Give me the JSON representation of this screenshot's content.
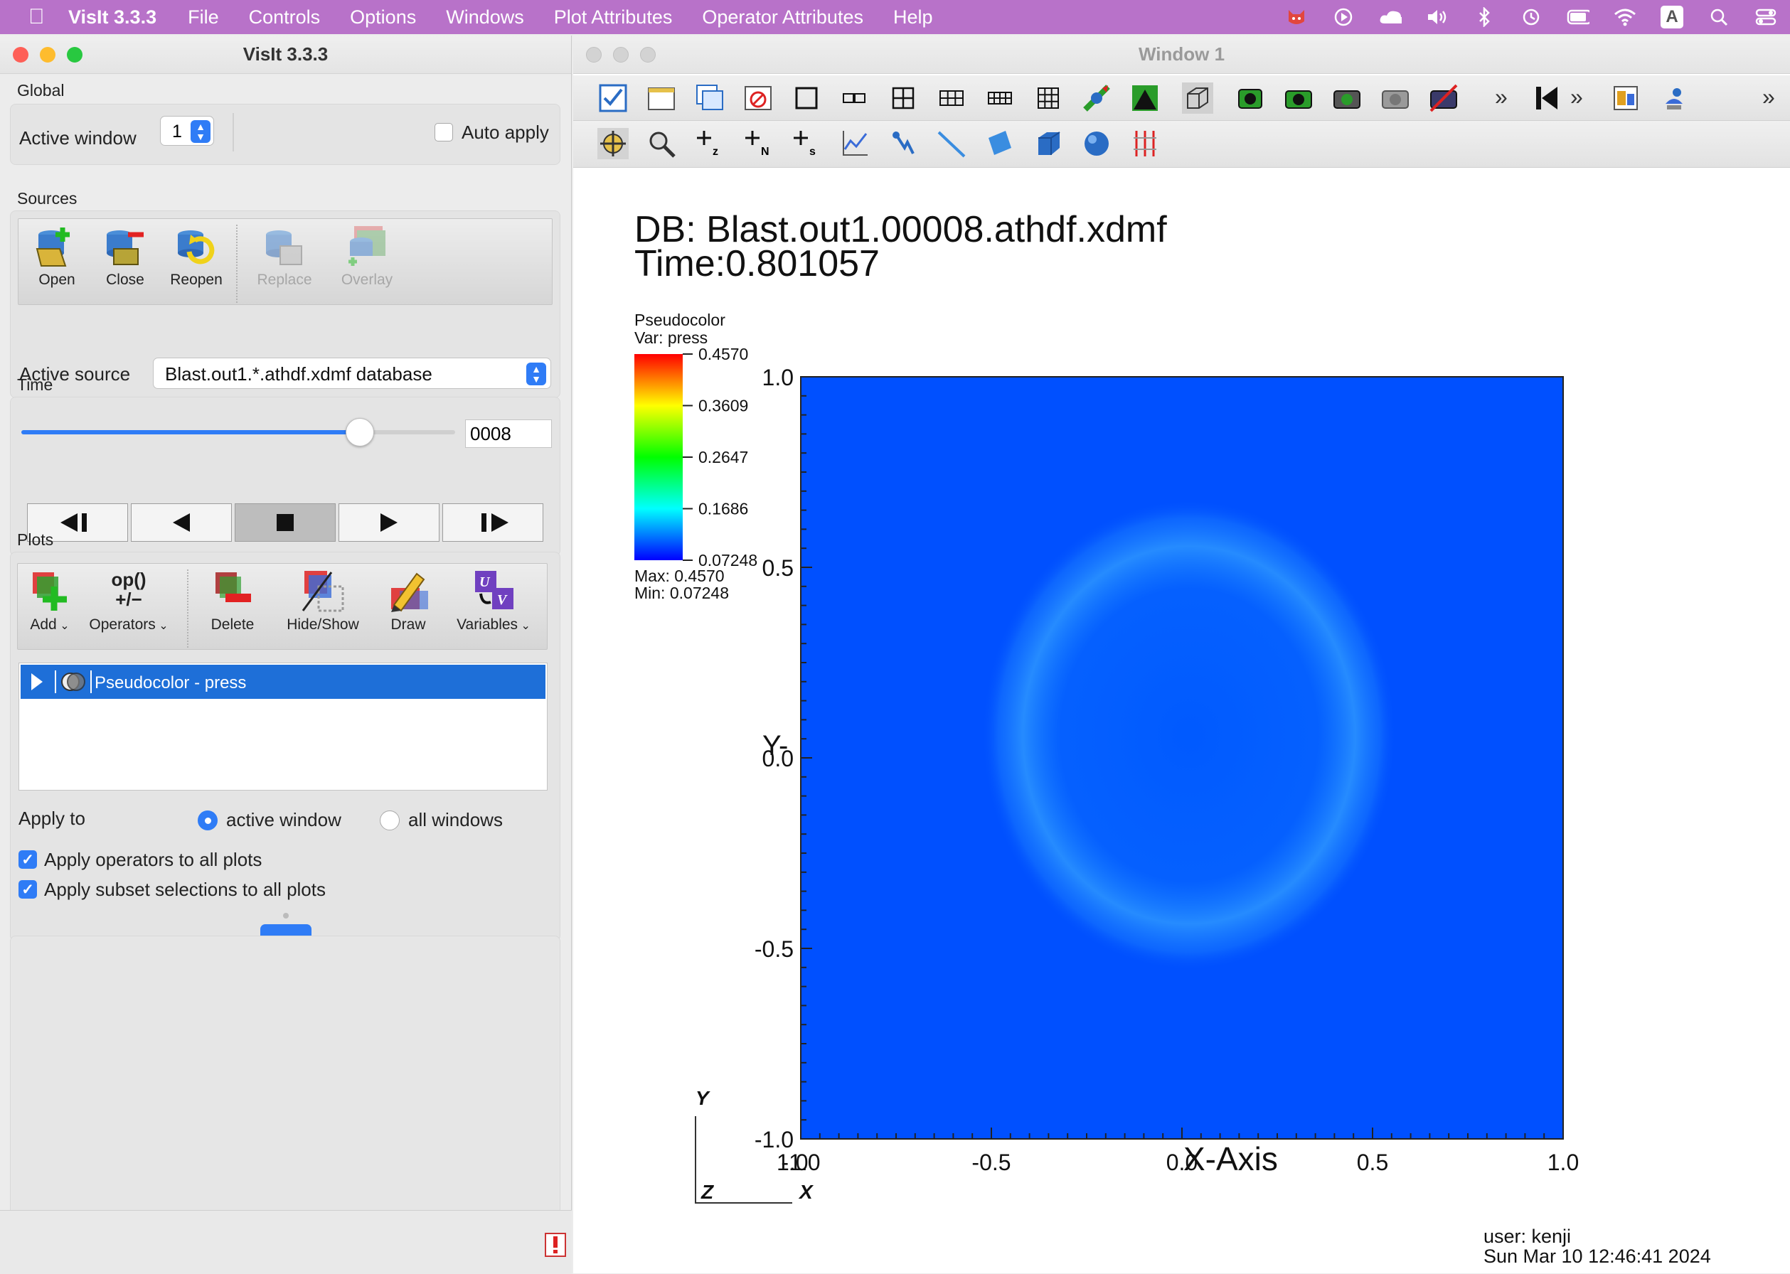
{
  "menubar": {
    "app_name": "VisIt 3.3.3",
    "items": [
      "File",
      "Controls",
      "Options",
      "Windows",
      "Plot Attributes",
      "Operator Attributes",
      "Help"
    ],
    "status_icons": [
      "creature-icon",
      "play-circle-icon",
      "cloud-icon",
      "volume-icon",
      "bluetooth-icon",
      "time-machine-icon",
      "battery-icon",
      "wifi-icon",
      "input-source-icon",
      "search-icon",
      "control-center-icon"
    ],
    "input_source_letter": "A"
  },
  "panel": {
    "title": "VisIt 3.3.3",
    "global": {
      "section": "Global",
      "active_window_label": "Active window",
      "active_window_value": "1",
      "auto_apply_label": "Auto apply",
      "auto_apply_checked": false
    },
    "sources": {
      "section": "Sources",
      "buttons": [
        {
          "label": "Open",
          "enabled": true
        },
        {
          "label": "Close",
          "enabled": true
        },
        {
          "label": "Reopen",
          "enabled": true
        },
        {
          "label": "Replace",
          "enabled": false
        },
        {
          "label": "Overlay",
          "enabled": false
        }
      ],
      "active_source_label": "Active source",
      "active_source_value": "Blast.out1.*.athdf.xdmf database"
    },
    "time": {
      "section": "Time",
      "slider_fraction": 0.78,
      "state_value": "0008",
      "vcr": [
        "step-back",
        "reverse-play",
        "stop",
        "play",
        "step-forward"
      ]
    },
    "plots": {
      "section": "Plots",
      "buttons": [
        {
          "label": "Add",
          "has_menu": true
        },
        {
          "label": "Operators",
          "has_menu": true,
          "icon_text": "op()\n+/−"
        },
        {
          "label": "Delete",
          "has_menu": false
        },
        {
          "label": "Hide/Show",
          "has_menu": false
        },
        {
          "label": "Draw",
          "has_menu": false
        },
        {
          "label": "Variables",
          "has_menu": true
        }
      ],
      "list": [
        {
          "label": "Pseudocolor - press",
          "selected": true
        }
      ],
      "apply_to_label": "Apply to",
      "apply_options": [
        {
          "label": "active window",
          "selected": true
        },
        {
          "label": "all windows",
          "selected": false
        }
      ],
      "apply_operators_label": "Apply operators to all plots",
      "apply_operators_checked": true,
      "apply_subsets_label": "Apply subset selections to all plots",
      "apply_subsets_checked": true
    }
  },
  "viz": {
    "title": "Window 1",
    "db_line": "DB: Blast.out1.00008.athdf.xdmf",
    "time_line": "Time:0.801057",
    "legend": {
      "plot_name": "Pseudocolor",
      "var_line": "Var: press",
      "ticks": [
        "0.4570",
        "0.3609",
        "0.2647",
        "0.1686",
        "0.07248"
      ],
      "max_line": "Max:  0.4570",
      "min_line": "Min:  0.07248"
    },
    "axes": {
      "y_ticks": [
        "1.0",
        "0.5",
        "0.0",
        "-0.5",
        "-1.0"
      ],
      "x_ticks": [
        "1.0",
        "-1.0",
        "-0.5",
        "0.0",
        "0.5",
        "1.0"
      ],
      "x_title": "X-Axis",
      "y_title": "Y-",
      "triad": {
        "y": "Y",
        "z": "Z",
        "x": "X"
      }
    },
    "user_line": "user: kenji",
    "date_line": "Sun Mar 10 12:46:41 2024",
    "colors": {
      "field_blue": "#0050ff",
      "ring_blue": "#1a8cff"
    }
  }
}
